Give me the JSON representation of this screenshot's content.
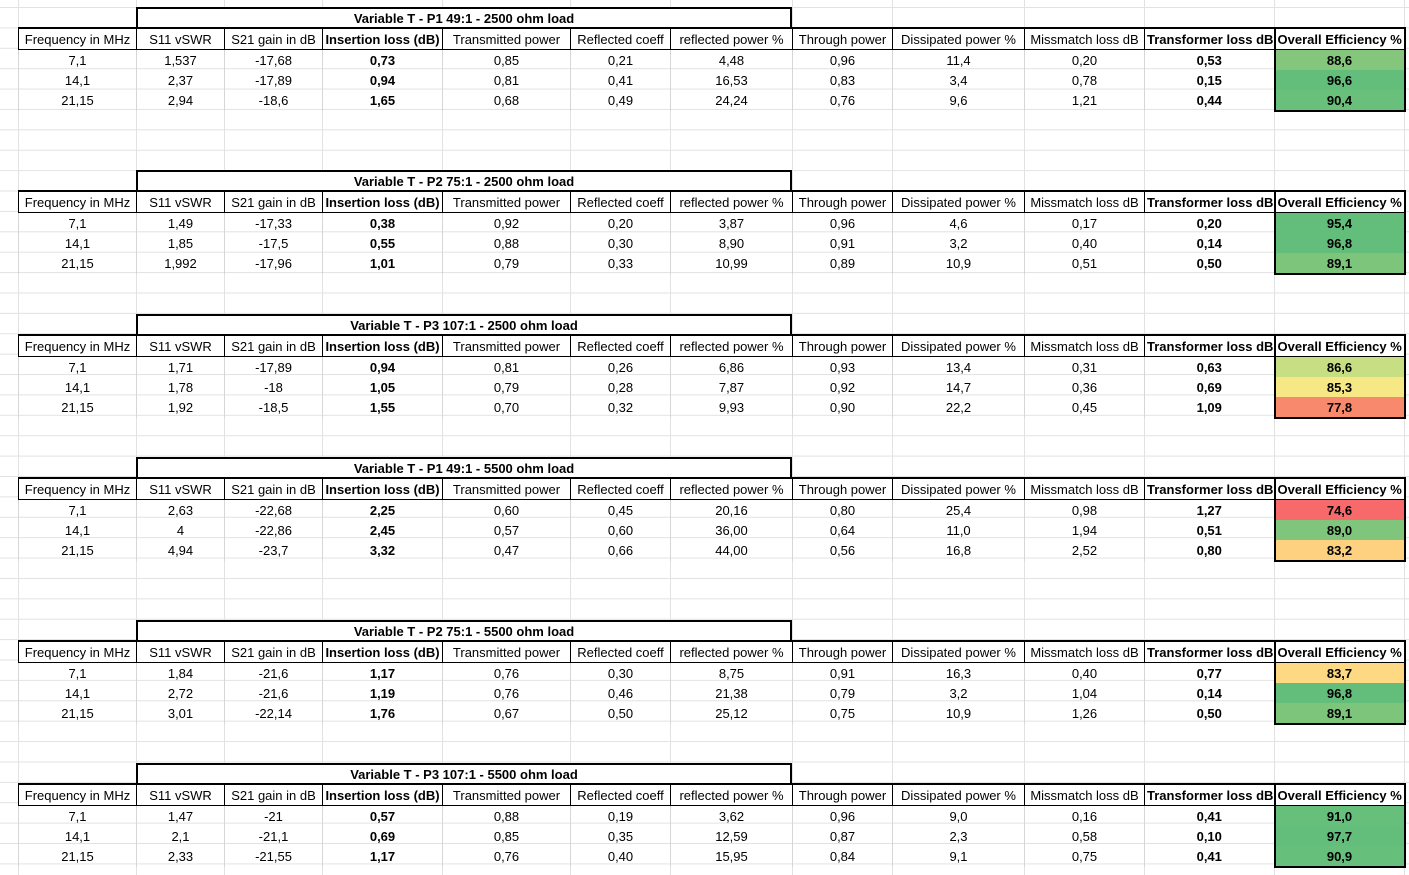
{
  "headers": [
    "Frequency in MHz",
    "S11 vSWR",
    "S21 gain in dB",
    "Insertion loss (dB)",
    "Transmitted power",
    "Reflected coeff",
    "reflected power %",
    "Through power",
    "Dissipated power %",
    "Missmatch loss dB",
    "Transformer loss dB",
    "Overall Efficiency %"
  ],
  "colors": {
    "green_dark": "#63be7b",
    "green_mid": "#84c77c",
    "green_light": "#b5d77f",
    "yellow_green": "#cce082",
    "yellow": "#f6e884",
    "orange_light": "#fdd17f",
    "orange": "#fcd27f",
    "red_light": "#f8896c",
    "red": "#f8696b"
  },
  "tables": [
    {
      "title": "Variable T - P1 49:1 - 2500 ohm load",
      "rows": [
        {
          "cells": [
            "7,1",
            "1,537",
            "-17,68",
            "0,73",
            "0,85",
            "0,21",
            "4,48",
            "0,96",
            "11,4",
            "0,20",
            "0,53",
            "88,6"
          ],
          "eff_color": "#84c77c"
        },
        {
          "cells": [
            "14,1",
            "2,37",
            "-17,89",
            "0,94",
            "0,81",
            "0,41",
            "16,53",
            "0,83",
            "3,4",
            "0,78",
            "0,15",
            "96,6"
          ],
          "eff_color": "#63be7b"
        },
        {
          "cells": [
            "21,15",
            "2,94",
            "-18,6",
            "1,65",
            "0,68",
            "0,49",
            "24,24",
            "0,76",
            "9,6",
            "1,21",
            "0,44",
            "90,4"
          ],
          "eff_color": "#69c07b"
        }
      ]
    },
    {
      "title": "Variable T - P2 75:1 - 2500 ohm load",
      "rows": [
        {
          "cells": [
            "7,1",
            "1,49",
            "-17,33",
            "0,38",
            "0,92",
            "0,20",
            "3,87",
            "0,96",
            "4,6",
            "0,17",
            "0,20",
            "95,4"
          ],
          "eff_color": "#63be7b"
        },
        {
          "cells": [
            "14,1",
            "1,85",
            "-17,5",
            "0,55",
            "0,88",
            "0,30",
            "8,90",
            "0,91",
            "3,2",
            "0,40",
            "0,14",
            "96,8"
          ],
          "eff_color": "#63be7b"
        },
        {
          "cells": [
            "21,15",
            "1,992",
            "-17,96",
            "1,01",
            "0,79",
            "0,33",
            "10,99",
            "0,89",
            "10,9",
            "0,51",
            "0,50",
            "89,1"
          ],
          "eff_color": "#7ec57c"
        }
      ]
    },
    {
      "title": "Variable T - P3 107:1 - 2500 ohm load",
      "rows": [
        {
          "cells": [
            "7,1",
            "1,71",
            "-17,89",
            "0,94",
            "0,81",
            "0,26",
            "6,86",
            "0,93",
            "13,4",
            "0,31",
            "0,63",
            "86,6"
          ],
          "eff_color": "#c7de82"
        },
        {
          "cells": [
            "14,1",
            "1,78",
            "-18",
            "1,05",
            "0,79",
            "0,28",
            "7,87",
            "0,92",
            "14,7",
            "0,36",
            "0,69",
            "85,3"
          ],
          "eff_color": "#f6e884"
        },
        {
          "cells": [
            "21,15",
            "1,92",
            "-18,5",
            "1,55",
            "0,70",
            "0,32",
            "9,93",
            "0,90",
            "22,2",
            "0,45",
            "1,09",
            "77,8"
          ],
          "eff_color": "#f8896c"
        }
      ]
    },
    {
      "title": "Variable T - P1 49:1 - 5500 ohm load",
      "rows": [
        {
          "cells": [
            "7,1",
            "2,63",
            "-22,68",
            "2,25",
            "0,60",
            "0,45",
            "20,16",
            "0,80",
            "25,4",
            "0,98",
            "1,27",
            "74,6"
          ],
          "eff_color": "#f8696b"
        },
        {
          "cells": [
            "14,1",
            "4",
            "-22,86",
            "2,45",
            "0,57",
            "0,60",
            "36,00",
            "0,64",
            "11,0",
            "1,94",
            "0,51",
            "89,0"
          ],
          "eff_color": "#7fc67c"
        },
        {
          "cells": [
            "21,15",
            "4,94",
            "-23,7",
            "3,32",
            "0,47",
            "0,66",
            "44,00",
            "0,56",
            "16,8",
            "2,52",
            "0,80",
            "83,2"
          ],
          "eff_color": "#fdd17f"
        }
      ]
    },
    {
      "title": "Variable T - P2 75:1 - 5500 ohm load",
      "rows": [
        {
          "cells": [
            "7,1",
            "1,84",
            "-21,6",
            "1,17",
            "0,76",
            "0,30",
            "8,75",
            "0,91",
            "16,3",
            "0,40",
            "0,77",
            "83,7"
          ],
          "eff_color": "#fcd982"
        },
        {
          "cells": [
            "14,1",
            "2,72",
            "-21,6",
            "1,19",
            "0,76",
            "0,46",
            "21,38",
            "0,79",
            "3,2",
            "1,04",
            "0,14",
            "96,8"
          ],
          "eff_color": "#63be7b"
        },
        {
          "cells": [
            "21,15",
            "3,01",
            "-22,14",
            "1,76",
            "0,67",
            "0,50",
            "25,12",
            "0,75",
            "10,9",
            "1,26",
            "0,50",
            "89,1"
          ],
          "eff_color": "#7ec57c"
        }
      ]
    },
    {
      "title": "Variable T - P3 107:1 - 5500 ohm load",
      "rows": [
        {
          "cells": [
            "7,1",
            "1,47",
            "-21",
            "0,57",
            "0,88",
            "0,19",
            "3,62",
            "0,96",
            "9,0",
            "0,16",
            "0,41",
            "91,0"
          ],
          "eff_color": "#66bf7b"
        },
        {
          "cells": [
            "14,1",
            "2,1",
            "-21,1",
            "0,69",
            "0,85",
            "0,35",
            "12,59",
            "0,87",
            "2,3",
            "0,58",
            "0,10",
            "97,7"
          ],
          "eff_color": "#63be7b"
        },
        {
          "cells": [
            "21,15",
            "2,33",
            "-21,55",
            "1,17",
            "0,76",
            "0,40",
            "15,95",
            "0,84",
            "9,1",
            "0,75",
            "0,41",
            "90,9"
          ],
          "eff_color": "#66bf7b"
        }
      ]
    }
  ]
}
